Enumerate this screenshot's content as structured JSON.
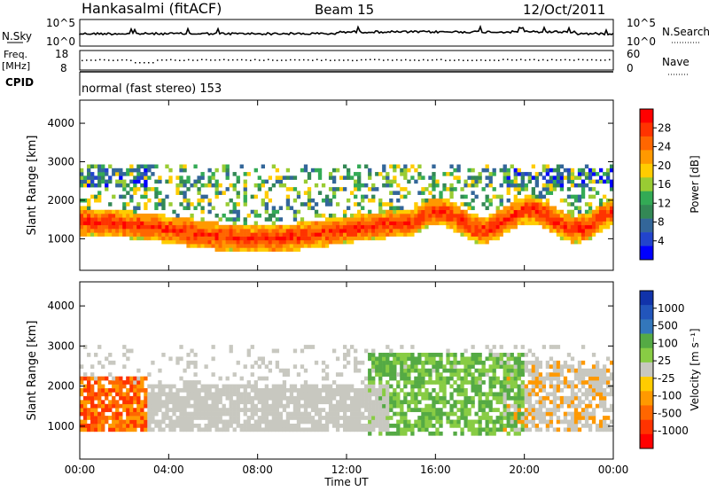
{
  "header": {
    "station": "Hankasalmi (fitACF)",
    "beam": "Beam 15",
    "date": "12/Oct/2011",
    "cpid_text": "normal (fast stereo) 153"
  },
  "side_labels": {
    "nsky": "N.Sky",
    "nsearch": "N.Search",
    "freq_line1": "Freq.",
    "freq_line2": "[MHz]",
    "nave": "Nave",
    "cpid": "CPID",
    "nsky_top": "10^5",
    "nsky_bottom": "10^0",
    "nsearch_top": "10^5",
    "nsearch_bottom": "10^0",
    "freq_top": "18",
    "freq_bottom": "8",
    "nave_top": "60",
    "nave_bottom": "0"
  },
  "chart_data": [
    {
      "type": "heatmap",
      "name": "power",
      "ylabel": "Slant Range [km]",
      "ylim": [
        180,
        4600
      ],
      "yticks": [
        1000,
        2000,
        3000,
        4000
      ],
      "colorbar": {
        "label": "Power [dB]",
        "ticks": [
          "28",
          "24",
          "20",
          "16",
          "12",
          "8",
          "4"
        ],
        "colors": [
          "#ff0000",
          "#ff3300",
          "#ff6600",
          "#ff9900",
          "#ffcc00",
          "#99cc33",
          "#33aa55",
          "#338855",
          "#336699",
          "#2244cc",
          "#0000ff"
        ]
      }
    },
    {
      "type": "heatmap",
      "name": "velocity",
      "ylabel": "Slant Range [km]",
      "ylim": [
        180,
        4600
      ],
      "yticks": [
        1000,
        2000,
        3000,
        4000
      ],
      "xlabel": "Time UT",
      "xticks": [
        "00:00",
        "04:00",
        "08:00",
        "12:00",
        "16:00",
        "20:00",
        "00:00"
      ],
      "colorbar": {
        "label": "Velocity [m s⁻¹]",
        "ticks": [
          "1000",
          "500",
          "100",
          "25",
          "-25",
          "-100",
          "-500",
          "-1000"
        ],
        "colors": [
          "#1133aa",
          "#2255bb",
          "#3377bb",
          "#55aa44",
          "#88cc44",
          "#c8c8c0",
          "#ffcc00",
          "#ff9900",
          "#ff6600",
          "#ff3300",
          "#ff0000"
        ]
      }
    }
  ]
}
